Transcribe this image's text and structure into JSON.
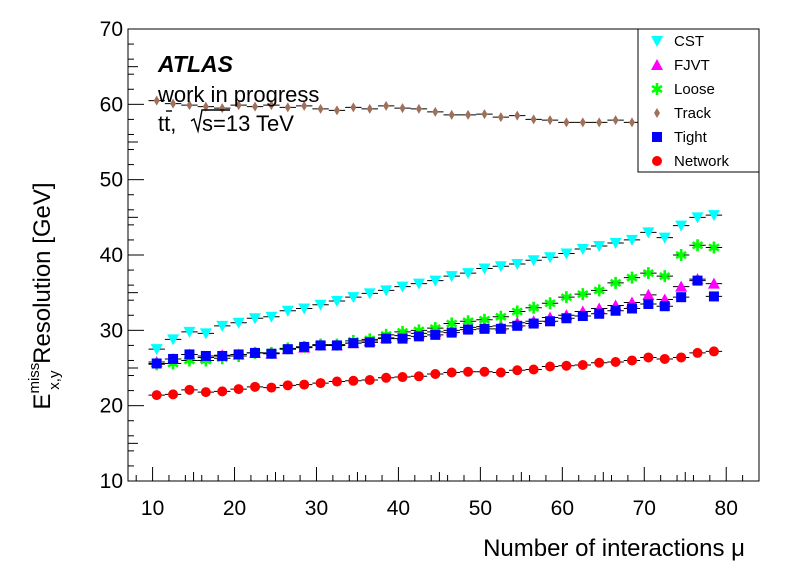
{
  "chart_data": {
    "type": "scatter",
    "xlabel": "Number of interactions μ",
    "ylabel_main": "E",
    "ylabel_sup": "miss",
    "ylabel_sub": "x,y",
    "ylabel_rest": " Resolution [GeV]",
    "xlim": [
      7,
      84
    ],
    "ylim": [
      10,
      70
    ],
    "xticks": [
      10,
      20,
      30,
      40,
      50,
      60,
      70,
      80
    ],
    "yticks": [
      10,
      20,
      30,
      40,
      50,
      60,
      70
    ],
    "grid": false,
    "legend_position": "top-right",
    "annotations": {
      "experiment": "ATLAS",
      "status": "work in progress",
      "process_prefix": "tt, ",
      "energy": "s=13 TeV"
    },
    "x": [
      10.5,
      12.5,
      14.5,
      16.5,
      18.5,
      20.5,
      22.5,
      24.5,
      26.5,
      28.5,
      30.5,
      32.5,
      34.5,
      36.5,
      38.5,
      40.5,
      42.5,
      44.5,
      46.5,
      48.5,
      50.5,
      52.5,
      54.5,
      56.5,
      58.5,
      60.5,
      62.5,
      64.5,
      66.5,
      68.5,
      70.5,
      72.5,
      74.5,
      76.5,
      78.5
    ],
    "series": [
      {
        "name": "CST",
        "color": "#00ffff",
        "marker": "triangle-down",
        "values": [
          27.5,
          28.8,
          29.8,
          29.6,
          30.6,
          31.0,
          31.6,
          31.8,
          32.6,
          32.9,
          33.4,
          33.9,
          34.4,
          34.9,
          35.3,
          35.8,
          36.2,
          36.6,
          37.2,
          37.6,
          38.2,
          38.5,
          38.8,
          39.3,
          39.7,
          40.2,
          40.8,
          41.2,
          41.6,
          42.0,
          43.0,
          42.3,
          43.9,
          45.0,
          45.3
        ]
      },
      {
        "name": "FJVT",
        "color": "#ff00ff",
        "marker": "triangle-up",
        "values": [
          25.8,
          26.2,
          26.8,
          26.4,
          26.7,
          26.8,
          27.0,
          26.9,
          27.5,
          27.7,
          28.0,
          28.0,
          28.3,
          28.6,
          29.0,
          29.3,
          29.6,
          29.8,
          30.0,
          30.4,
          30.5,
          30.6,
          31.0,
          31.2,
          31.7,
          32.0,
          32.5,
          32.9,
          33.3,
          33.7,
          34.7,
          34.1,
          35.8,
          36.8,
          36.2
        ]
      },
      {
        "name": "Loose",
        "color": "#00ff00",
        "marker": "star",
        "values": [
          25.5,
          25.6,
          26.0,
          26.0,
          26.3,
          26.6,
          27.0,
          27.0,
          27.6,
          27.8,
          28.1,
          28.1,
          28.6,
          28.8,
          29.4,
          29.8,
          30.0,
          30.3,
          30.9,
          31.2,
          31.4,
          31.8,
          32.5,
          33.0,
          33.6,
          34.4,
          34.8,
          35.3,
          36.3,
          37.0,
          37.6,
          37.2,
          40.0,
          41.3,
          41.0
        ]
      },
      {
        "name": "Track",
        "color": "#a0705a",
        "marker": "diamond",
        "values": [
          60.5,
          60.1,
          59.9,
          59.7,
          59.5,
          59.9,
          59.7,
          59.9,
          59.6,
          59.8,
          59.4,
          59.2,
          59.6,
          59.4,
          59.8,
          59.5,
          59.4,
          59.0,
          58.6,
          58.6,
          58.7,
          58.3,
          58.5,
          58.0,
          57.9,
          57.6,
          57.6,
          57.6,
          57.9,
          57.6,
          57.3,
          57.0,
          56.8,
          57.4,
          56.8
        ]
      },
      {
        "name": "Tight",
        "color": "#0000ff",
        "marker": "square",
        "values": [
          25.6,
          26.2,
          26.8,
          26.6,
          26.6,
          26.8,
          27.0,
          26.9,
          27.5,
          27.8,
          28.0,
          28.0,
          28.3,
          28.4,
          28.9,
          28.9,
          29.2,
          29.4,
          29.7,
          30.1,
          30.2,
          30.2,
          30.6,
          30.9,
          31.2,
          31.6,
          31.9,
          32.2,
          32.6,
          32.9,
          33.5,
          33.2,
          34.4,
          36.6,
          34.5
        ]
      },
      {
        "name": "Network",
        "color": "#ff0000",
        "marker": "circle",
        "values": [
          21.4,
          21.5,
          22.1,
          21.8,
          21.9,
          22.2,
          22.5,
          22.4,
          22.7,
          22.8,
          23.0,
          23.2,
          23.3,
          23.4,
          23.7,
          23.8,
          23.9,
          24.2,
          24.4,
          24.5,
          24.5,
          24.4,
          24.7,
          24.8,
          25.2,
          25.3,
          25.4,
          25.7,
          25.8,
          26.0,
          26.4,
          26.2,
          26.4,
          27.0,
          27.2
        ]
      }
    ]
  }
}
